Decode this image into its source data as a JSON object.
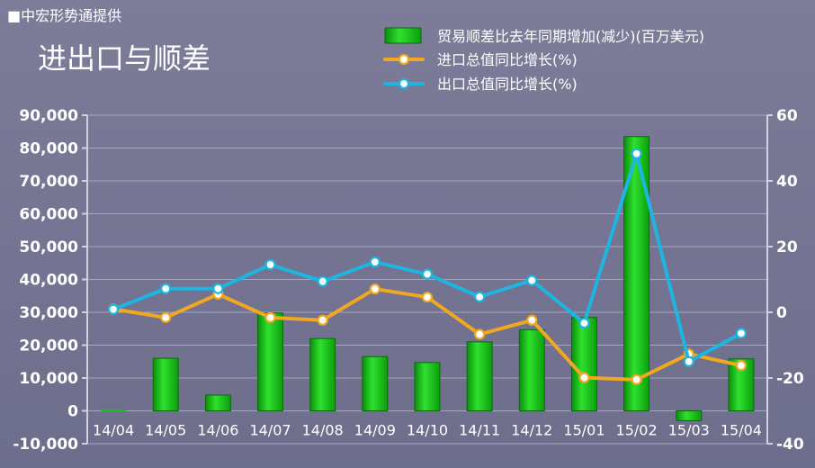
{
  "source": "■中宏形势通提供",
  "title": "进出口与顺差",
  "chart_data": {
    "type": "bar",
    "categories": [
      "14/04",
      "14/05",
      "14/06",
      "14/07",
      "14/08",
      "14/09",
      "14/10",
      "14/11",
      "14/12",
      "15/01",
      "15/02",
      "15/03",
      "15/04"
    ],
    "series": [
      {
        "name": "贸易顺差比去年同期增加(减少)(百万美元)",
        "type": "bar",
        "axis": "left",
        "values": [
          0,
          16000,
          4800,
          29800,
          22000,
          16500,
          14700,
          21000,
          24700,
          28400,
          83500,
          -3000,
          15800
        ],
        "color": "#19c619"
      },
      {
        "name": "进口总值同比增长(%)",
        "type": "line",
        "axis": "right",
        "values": [
          1,
          -1.6,
          5.5,
          -1.6,
          -2.4,
          7.1,
          4.6,
          -6.7,
          -2.4,
          -19.9,
          -20.5,
          -12.7,
          -16.2
        ],
        "color": "#f0a820"
      },
      {
        "name": "出口总值同比增长(%)",
        "type": "line",
        "axis": "right",
        "values": [
          0.9,
          7.2,
          7.2,
          14.5,
          9.4,
          15.3,
          11.6,
          4.7,
          9.7,
          -3.3,
          48.3,
          -15,
          -6.4
        ],
        "color": "#1cb6e0"
      }
    ],
    "ylim_left": [
      -10000,
      90000
    ],
    "yticks_left": [
      "-10,000",
      "0",
      "10,000",
      "20,000",
      "30,000",
      "40,000",
      "50,000",
      "60,000",
      "70,000",
      "80,000",
      "90,000"
    ],
    "ylim_right": [
      -40,
      60
    ],
    "yticks_right": [
      "-40",
      "-20",
      "0",
      "20",
      "40",
      "60"
    ],
    "grid": true,
    "legend": "top-right"
  }
}
